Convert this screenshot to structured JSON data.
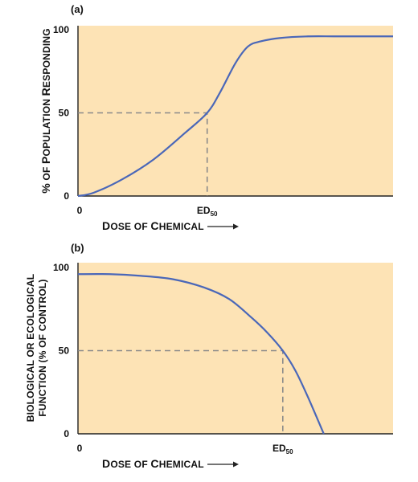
{
  "chart_data": [
    {
      "panel": "(a)",
      "type": "line",
      "ylabel": "% of Population Responding",
      "ylabel_parts": [
        {
          "t": "%",
          "big": true
        },
        {
          "t": " OF ",
          "big": false
        },
        {
          "t": "P",
          "big": true
        },
        {
          "t": "OPULATION ",
          "big": false
        },
        {
          "t": "R",
          "big": true
        },
        {
          "t": "ESPONDING",
          "big": false
        }
      ],
      "xlabel": "Dose of Chemical",
      "xlabel_parts": [
        {
          "t": "D",
          "big": true
        },
        {
          "t": "OSE OF ",
          "big": false
        },
        {
          "t": "C",
          "big": true
        },
        {
          "t": "HEMICAL",
          "big": false
        }
      ],
      "ylim": [
        0,
        100
      ],
      "xlim": [
        0,
        100
      ],
      "y_ticks": [
        "0",
        "50",
        "100"
      ],
      "x_ticks": [
        "0"
      ],
      "ed50": {
        "label": "ED",
        "sub": "50",
        "x": 41,
        "y": 50
      },
      "x": [
        0,
        5,
        14,
        24,
        34,
        41,
        45,
        50,
        54,
        58,
        64,
        73,
        83,
        100
      ],
      "y": [
        0,
        2,
        10,
        22,
        38,
        50,
        62,
        80,
        90,
        93,
        95,
        96,
        96,
        96
      ]
    },
    {
      "panel": "(b)",
      "type": "line",
      "ylabel_lines": [
        "Biological or Ecological",
        "Function (% of Control)"
      ],
      "ylabel_parts": [
        [
          {
            "t": "BIOLOGICAL OR ECOLOGICAL",
            "big": false
          }
        ],
        [
          {
            "t": "FUNCTION (% OF CONTROL)",
            "big": false
          }
        ]
      ],
      "xlabel": "Dose of Chemical",
      "xlabel_parts": [
        {
          "t": "D",
          "big": true
        },
        {
          "t": "OSE OF ",
          "big": false
        },
        {
          "t": "C",
          "big": true
        },
        {
          "t": "HEMICAL",
          "big": false
        }
      ],
      "ylim": [
        0,
        100
      ],
      "xlim": [
        0,
        100
      ],
      "y_ticks": [
        "0",
        "50",
        "100"
      ],
      "x_ticks": [
        "0"
      ],
      "ed50": {
        "label": "ED",
        "sub": "50",
        "x": 65,
        "y": 50
      },
      "x": [
        0,
        10,
        20,
        30,
        40,
        48,
        55,
        60,
        65,
        69,
        73,
        78
      ],
      "y": [
        96,
        96,
        95,
        93,
        88,
        81,
        70,
        61,
        50,
        38,
        22,
        0
      ]
    }
  ]
}
